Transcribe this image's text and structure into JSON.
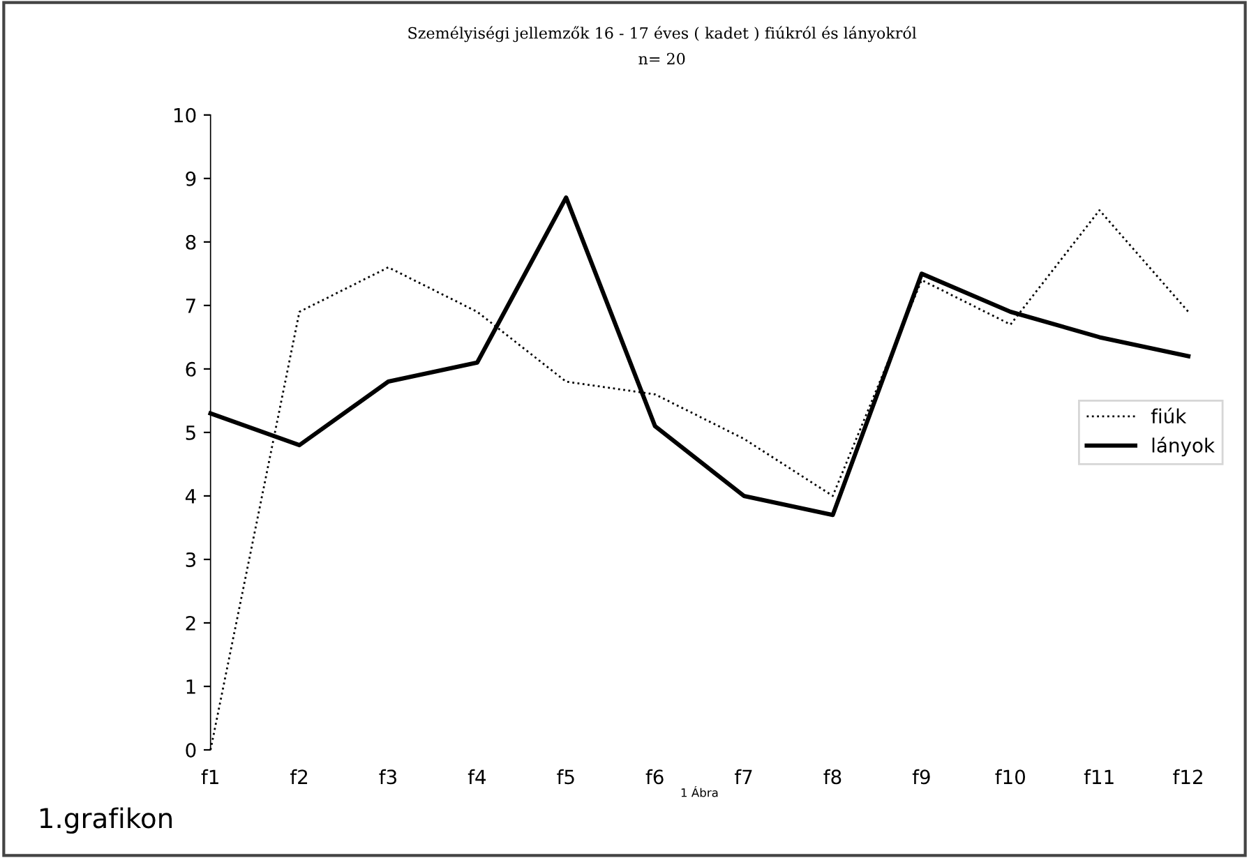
{
  "chart_data": {
    "type": "line",
    "title": "Személyiségi jellemzők 16 - 17 éves ( kadet ) fiúkról és lányokról",
    "subtitle": "n= 20",
    "xlabel": "1 Ábra",
    "categories": [
      "f1",
      "f2",
      "f3",
      "f4",
      "f5",
      "f6",
      "f7",
      "f8",
      "f9",
      "f10",
      "f11",
      "f12"
    ],
    "series": [
      {
        "name": "fiúk",
        "color": "#000000",
        "line_style": "dotted",
        "values": [
          0,
          6.9,
          7.6,
          6.9,
          5.8,
          5.6,
          4.9,
          4.0,
          7.4,
          6.7,
          8.5,
          6.9
        ]
      },
      {
        "name": "lányok",
        "color": "#000000",
        "line_style": "solid",
        "values": [
          5.3,
          4.8,
          5.8,
          6.1,
          8.7,
          5.1,
          4.0,
          3.7,
          7.5,
          6.9,
          6.5,
          6.2
        ]
      }
    ],
    "ylim": [
      0,
      10
    ],
    "yticks": [
      0,
      1,
      2,
      3,
      4,
      5,
      6,
      7,
      8,
      9,
      10
    ],
    "grid": false,
    "legend": "right",
    "marker": "none",
    "annotations": [
      "1.grafikon"
    ]
  }
}
